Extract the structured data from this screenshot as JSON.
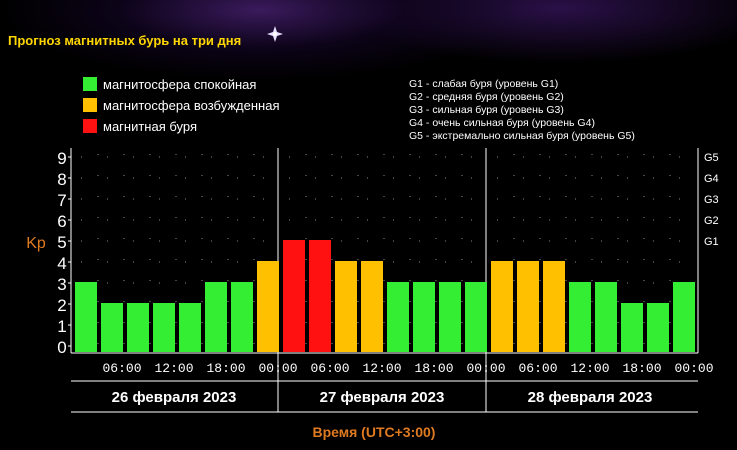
{
  "title": "Прогноз магнитных бурь на три дня",
  "legend_left": [
    {
      "label": "магнитосфера спокойная",
      "color": "#33ee33"
    },
    {
      "label": "магнитосфера возбужденная",
      "color": "#ffc000"
    },
    {
      "label": "магнитная буря",
      "color": "#ff1111"
    }
  ],
  "legend_right": [
    "G1 - слабая буря (уровень G1)",
    "G2 - средняя буря (уровень G2)",
    "G3 - сильная буря (уровень G3)",
    "G4 - очень сильная буря (уровень G4)",
    "G5 - экстремально сильная буря (уровень G5)"
  ],
  "ylabel": "Kp",
  "xlabel": "Время (UTC+3:00)",
  "days": [
    "26 февраля 2023",
    "27 февраля 2023",
    "28 февраля 2023"
  ],
  "colors": {
    "calm": "#33ee33",
    "excited": "#ffc000",
    "storm": "#ff1111",
    "title": "#ffd700",
    "axis_label": "#e07a20"
  },
  "chart_data": {
    "type": "bar",
    "ylim": [
      0,
      9
    ],
    "y_ticks": [
      0,
      1,
      2,
      3,
      4,
      5,
      6,
      7,
      8,
      9
    ],
    "x_tick_labels": [
      "06:00",
      "12:00",
      "18:00",
      "00:00",
      "06:00",
      "12:00",
      "18:00",
      "00:00",
      "06:00",
      "12:00",
      "18:00",
      "00:00"
    ],
    "g_scale": [
      {
        "label": "G1",
        "kp": 5
      },
      {
        "label": "G2",
        "kp": 6
      },
      {
        "label": "G3",
        "kp": 7
      },
      {
        "label": "G4",
        "kp": 8
      },
      {
        "label": "G5",
        "kp": 9
      }
    ],
    "interval_hours": 3,
    "values": [
      3,
      2,
      2,
      2,
      2,
      3,
      3,
      4,
      5,
      5,
      4,
      4,
      3,
      3,
      3,
      3,
      4,
      4,
      4,
      3,
      3,
      2,
      2,
      3
    ],
    "categories_by_value": {
      "calm": [
        0,
        3
      ],
      "excited": [
        4,
        4
      ],
      "storm": [
        5,
        9
      ]
    },
    "grid": true
  }
}
